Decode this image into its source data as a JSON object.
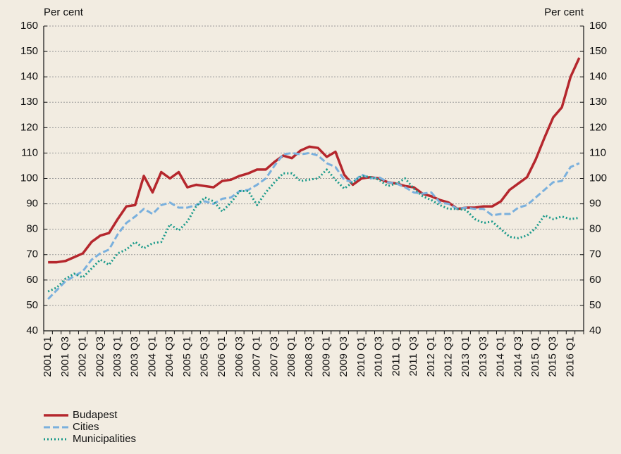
{
  "chart_data": {
    "type": "line",
    "y_label": "Per cent",
    "y2_label": "Per cent",
    "categories": [
      "2001 Q1",
      null,
      "2001 Q3",
      null,
      "2002 Q1",
      null,
      "2002 Q3",
      null,
      "2003 Q1",
      null,
      "2003 Q3",
      null,
      "2004 Q1",
      null,
      "2004 Q3",
      null,
      "2005 Q1",
      null,
      "2005 Q3",
      null,
      "2006 Q1",
      null,
      "2006 Q3",
      null,
      "2007 Q1",
      null,
      "2007 Q3",
      null,
      "2008 Q1",
      null,
      "2008 Q3",
      null,
      "2009 Q1",
      null,
      "2009 Q3",
      null,
      "2010 Q1",
      null,
      "2010 Q3",
      null,
      "2011 Q1",
      null,
      "2011 Q3",
      null,
      "2012 Q1",
      null,
      "2012 Q3",
      null,
      "2013 Q1",
      null,
      "2013 Q3",
      null,
      "2014 Q1",
      null,
      "2014 Q3",
      null,
      "2015 Q1",
      null,
      "2015 Q3",
      null,
      "2016 Q1",
      null
    ],
    "series": [
      {
        "name": "Budapest",
        "color": "#b5272d",
        "style": "solid",
        "values": [
          67,
          67,
          67.5,
          69,
          70.5,
          75,
          77.5,
          78.5,
          84,
          89,
          89.5,
          101,
          94.5,
          102.5,
          100,
          102.5,
          96.5,
          97.5,
          97,
          96.5,
          99,
          99.5,
          101,
          102,
          103.5,
          103.5,
          106.5,
          109,
          108,
          111,
          112.5,
          112,
          108.5,
          110.5,
          101.5,
          97.5,
          100,
          100.5,
          100,
          98.5,
          98,
          97,
          96.5,
          94,
          93,
          91.5,
          90.5,
          88,
          88.5,
          88.5,
          89,
          89,
          91,
          95.5,
          98,
          100.5,
          107.5,
          116,
          124,
          128,
          140,
          147.5
        ]
      },
      {
        "name": "Cities",
        "color": "#7ab0dd",
        "style": "dashed",
        "values": [
          52.5,
          56,
          59.5,
          61.5,
          63.5,
          68,
          70.5,
          72,
          78,
          82.5,
          85,
          88,
          86,
          89.5,
          90.5,
          88.5,
          88.5,
          89.5,
          91,
          90,
          92,
          92.5,
          95,
          95.5,
          97.5,
          100,
          105,
          109.5,
          110,
          109.5,
          110,
          109,
          106,
          104.5,
          99.5,
          98.5,
          101.5,
          100,
          100.5,
          98.5,
          98,
          96.5,
          94.5,
          94,
          94.5,
          90.5,
          90,
          88,
          88.5,
          88,
          88,
          85.5,
          86,
          86,
          88.5,
          89.5,
          92.5,
          95.5,
          98.5,
          99,
          104.5,
          106
        ]
      },
      {
        "name": "Municipalities",
        "color": "#1a9a8a",
        "style": "dotted",
        "values": [
          55.5,
          57,
          60.5,
          62.5,
          61,
          64.5,
          68,
          66,
          70.5,
          72,
          75,
          72.5,
          74.5,
          75,
          82,
          79.5,
          83,
          89,
          92.5,
          91,
          87,
          90.5,
          95,
          95,
          89.5,
          94.5,
          98.5,
          102,
          102,
          99,
          99.5,
          100,
          103.5,
          99.5,
          96,
          98.5,
          101,
          100.5,
          99.5,
          97,
          98,
          100,
          96,
          93,
          91.5,
          89.5,
          88,
          88,
          87.5,
          84,
          82.5,
          83,
          80,
          77,
          76.5,
          77.5,
          80.5,
          85.5,
          84,
          85,
          84,
          84.5
        ]
      }
    ],
    "ylim": [
      40,
      160
    ],
    "yticks": [
      40,
      50,
      60,
      70,
      80,
      90,
      100,
      110,
      120,
      130,
      140,
      150,
      160
    ],
    "y2lim": [
      40,
      160
    ],
    "y2ticks": [
      40,
      50,
      60,
      70,
      80,
      90,
      100,
      110,
      120,
      130,
      140,
      150,
      160
    ],
    "grid": true,
    "legend": "bottom-left"
  }
}
